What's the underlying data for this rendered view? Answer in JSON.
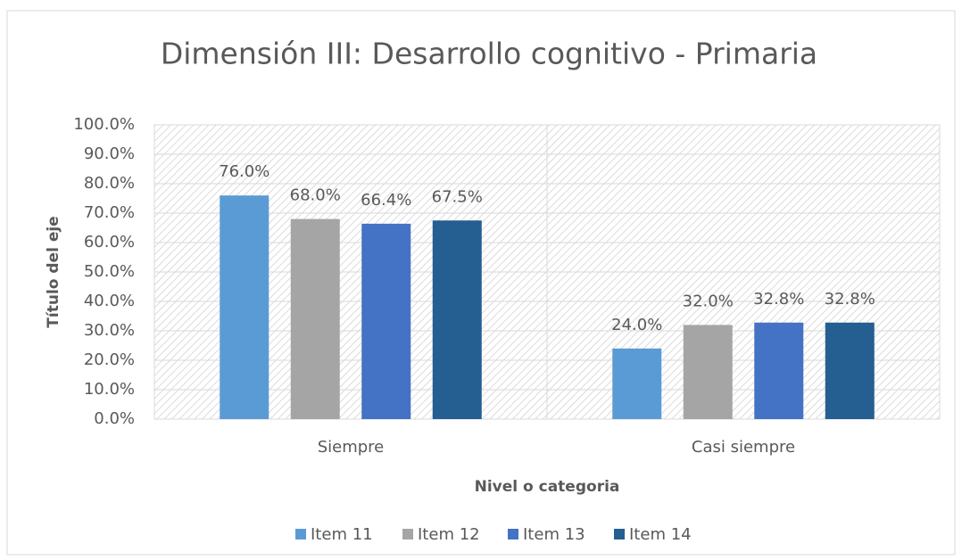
{
  "chart_data": {
    "type": "bar",
    "title": "Dimensión III: Desarrollo cognitivo - Primaria",
    "x_label": "Nivel o categoria",
    "y_label": "Título del eje",
    "categories": [
      "Siempre",
      "Casi siempre"
    ],
    "series": [
      {
        "name": "Item 11",
        "color": "#5b9bd5",
        "values": [
          76.0,
          24.0
        ],
        "value_labels": [
          "76.0%",
          "24.0%"
        ]
      },
      {
        "name": "Item 12",
        "color": "#a5a5a5",
        "values": [
          68.0,
          32.0
        ],
        "value_labels": [
          "68.0%",
          "32.0%"
        ]
      },
      {
        "name": "Item 13",
        "color": "#4472c4",
        "values": [
          66.4,
          32.8
        ],
        "value_labels": [
          "66.4%",
          "32.8%"
        ]
      },
      {
        "name": "Item 14",
        "color": "#255e91",
        "values": [
          67.5,
          32.8
        ],
        "value_labels": [
          "67.5%",
          "32.8%"
        ]
      }
    ],
    "ylim": [
      0,
      100
    ],
    "yticks": [
      {
        "value": 0,
        "label": "0.0%"
      },
      {
        "value": 10,
        "label": "10.0%"
      },
      {
        "value": 20,
        "label": "20.0%"
      },
      {
        "value": 30,
        "label": "30.0%"
      },
      {
        "value": 40,
        "label": "40.0%"
      },
      {
        "value": 50,
        "label": "50.0%"
      },
      {
        "value": 60,
        "label": "60.0%"
      },
      {
        "value": 70,
        "label": "70.0%"
      },
      {
        "value": 80,
        "label": "80.0%"
      },
      {
        "value": 90,
        "label": "90.0%"
      },
      {
        "value": 100,
        "label": "100.0%"
      }
    ],
    "grid": true,
    "legend": "bottom"
  }
}
